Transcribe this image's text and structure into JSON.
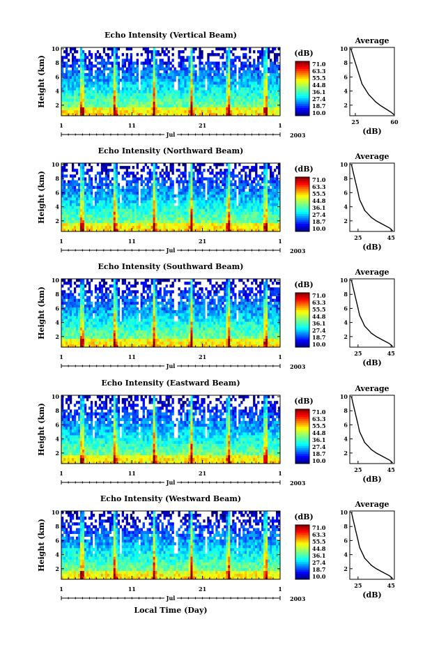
{
  "chart_data": [
    {
      "type": "heatmap",
      "title": "Echo Intensity (Vertical Beam)",
      "ylabel": "Height (km)",
      "y_ticks": [
        2,
        4,
        6,
        8,
        10
      ],
      "ylim": [
        0.5,
        10.2
      ],
      "x_ticks": [
        "1",
        "11",
        "21",
        "1"
      ],
      "x_month": "Jul",
      "x_year": "2003",
      "colorbar_title": "(dB)",
      "colorbar_ticks": [
        "71.0",
        "63.3",
        "55.5",
        "44.8",
        "36.1",
        "27.4",
        "18.7",
        "10.0"
      ],
      "colorbar_range": [
        10.0,
        71.0
      ],
      "avg_title": "Average",
      "avg_xlabel": "(dB)",
      "avg_x_ticks": [
        25,
        60
      ],
      "avg_xlim": [
        20,
        60
      ],
      "avg_y_ticks": [
        2,
        4,
        6,
        8,
        10
      ],
      "avg_height": [
        10,
        9.5,
        9,
        8.5,
        8,
        7.5,
        7,
        6.5,
        6,
        5.5,
        5,
        4.5,
        4,
        3.5,
        3,
        2.5,
        2,
        1.5,
        1,
        0.6
      ],
      "avg_value": [
        21,
        22,
        23,
        24,
        25,
        26,
        27,
        28,
        29,
        30,
        31,
        33,
        35,
        37,
        40,
        43,
        47,
        52,
        57,
        60
      ]
    },
    {
      "type": "heatmap",
      "title": "Echo Intensity (Northward Beam)",
      "ylabel": "Height (km)",
      "y_ticks": [
        2,
        4,
        6,
        8,
        10
      ],
      "ylim": [
        0.5,
        10.2
      ],
      "x_ticks": [
        "1",
        "11",
        "21",
        "1"
      ],
      "x_month": "Jul",
      "x_year": "2003",
      "colorbar_title": "(dB)",
      "colorbar_ticks": [
        "71.0",
        "63.3",
        "55.5",
        "44.8",
        "36.1",
        "27.4",
        "18.7",
        "10.0"
      ],
      "colorbar_range": [
        10.0,
        71.0
      ],
      "avg_title": "Average",
      "avg_xlabel": "(dB)",
      "avg_x_ticks": [
        25,
        45
      ],
      "avg_xlim": [
        20,
        47
      ],
      "avg_y_ticks": [
        2,
        4,
        6,
        8,
        10
      ],
      "avg_height": [
        10,
        9.5,
        9,
        8.5,
        8,
        7.5,
        7,
        6.5,
        6,
        5.5,
        5,
        4.5,
        4,
        3.5,
        3,
        2.5,
        2,
        1.5,
        1,
        0.6
      ],
      "avg_value": [
        21,
        21.5,
        22,
        22.5,
        23,
        23.5,
        24,
        24.5,
        25,
        25.5,
        26,
        27,
        28,
        29,
        31,
        33,
        36,
        40,
        44,
        46
      ]
    },
    {
      "type": "heatmap",
      "title": "Echo Intensity (Southward Beam)",
      "ylabel": "Height (km)",
      "y_ticks": [
        2,
        4,
        6,
        8,
        10
      ],
      "ylim": [
        0.5,
        10.2
      ],
      "x_ticks": [
        "1",
        "11",
        "21",
        "1"
      ],
      "x_month": "Jul",
      "x_year": "2003",
      "colorbar_title": "(dB)",
      "colorbar_ticks": [
        "71.0",
        "63.3",
        "55.5",
        "44.8",
        "36.1",
        "27.4",
        "18.7",
        "10.0"
      ],
      "colorbar_range": [
        10.0,
        71.0
      ],
      "avg_title": "Average",
      "avg_xlabel": "(dB)",
      "avg_x_ticks": [
        25,
        45
      ],
      "avg_xlim": [
        20,
        47
      ],
      "avg_y_ticks": [
        2,
        4,
        6,
        8,
        10
      ],
      "avg_height": [
        10,
        9.5,
        9,
        8.5,
        8,
        7.5,
        7,
        6.5,
        6,
        5.5,
        5,
        4.5,
        4,
        3.5,
        3,
        2.5,
        2,
        1.5,
        1,
        0.6
      ],
      "avg_value": [
        21,
        21.5,
        22,
        22.5,
        23,
        23.5,
        24,
        24.5,
        25,
        25.5,
        26,
        27,
        28,
        29,
        31,
        33,
        36,
        40,
        44,
        46
      ]
    },
    {
      "type": "heatmap",
      "title": "Echo Intensity (Eastward Beam)",
      "ylabel": "Height (km)",
      "y_ticks": [
        2,
        4,
        6,
        8,
        10
      ],
      "ylim": [
        0.5,
        10.2
      ],
      "x_ticks": [
        "1",
        "11",
        "21",
        "1"
      ],
      "x_month": "Jul",
      "x_year": "2003",
      "colorbar_title": "(dB)",
      "colorbar_ticks": [
        "71.0",
        "63.3",
        "55.5",
        "44.8",
        "36.1",
        "27.4",
        "18.7",
        "10.0"
      ],
      "colorbar_range": [
        10.0,
        71.0
      ],
      "avg_title": "Average",
      "avg_xlabel": "(dB)",
      "avg_x_ticks": [
        25,
        45
      ],
      "avg_xlim": [
        20,
        47
      ],
      "avg_y_ticks": [
        2,
        4,
        6,
        8,
        10
      ],
      "avg_height": [
        10,
        9.5,
        9,
        8.5,
        8,
        7.5,
        7,
        6.5,
        6,
        5.5,
        5,
        4.5,
        4,
        3.5,
        3,
        2.5,
        2,
        1.5,
        1,
        0.6
      ],
      "avg_value": [
        21,
        21.5,
        22,
        22.5,
        23,
        23.5,
        24,
        24.5,
        25,
        25.5,
        26,
        27,
        28,
        29,
        31,
        33,
        36,
        40,
        44,
        46
      ]
    },
    {
      "type": "heatmap",
      "title": "Echo Intensity (Westward Beam)",
      "ylabel": "Height (km)",
      "y_ticks": [
        2,
        4,
        6,
        8,
        10
      ],
      "ylim": [
        0.5,
        10.2
      ],
      "x_ticks": [
        "1",
        "11",
        "21",
        "1"
      ],
      "x_month": "Jul",
      "x_year": "2003",
      "colorbar_title": "(dB)",
      "colorbar_ticks": [
        "71.0",
        "63.3",
        "55.5",
        "44.8",
        "36.1",
        "27.4",
        "18.7",
        "10.0"
      ],
      "colorbar_range": [
        10.0,
        71.0
      ],
      "avg_title": "Average",
      "avg_xlabel": "(dB)",
      "avg_x_ticks": [
        25,
        45
      ],
      "avg_xlim": [
        20,
        47
      ],
      "avg_y_ticks": [
        2,
        4,
        6,
        8,
        10
      ],
      "avg_height": [
        10,
        9.5,
        9,
        8.5,
        8,
        7.5,
        7,
        6.5,
        6,
        5.5,
        5,
        4.5,
        4,
        3.5,
        3,
        2.5,
        2,
        1.5,
        1,
        0.6
      ],
      "avg_value": [
        21,
        21.5,
        22,
        22.5,
        23,
        23.5,
        24,
        24.5,
        25,
        25.5,
        26,
        27,
        28,
        29,
        31,
        33,
        36,
        40,
        44,
        46
      ]
    }
  ],
  "bottom_xlabel": "Local Time (Day)"
}
